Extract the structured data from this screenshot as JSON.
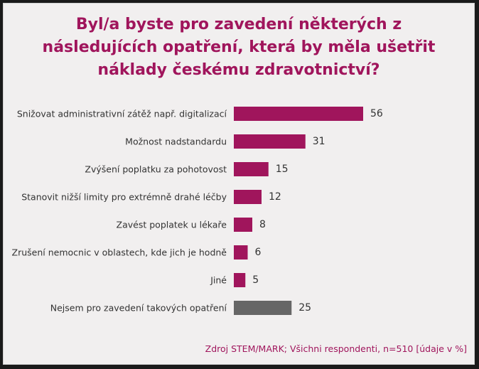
{
  "colors": {
    "primary": "#a0155c",
    "neutral": "#666666",
    "background": "#f1efef",
    "text": "#333333"
  },
  "chart_data": {
    "type": "bar",
    "orientation": "horizontal",
    "title_lines": [
      "Byl/a byste pro zavedení některých z",
      "následujících opatření, která by měla ušetřit",
      "náklady českému zdravotnictví?"
    ],
    "categories": [
      "Snižovat administrativní zátěž např. digitalizací",
      "Možnost nadstandardu",
      "Zvýšení poplatku za pohotovost",
      "Stanovit nižší limity pro  extrémně drahé léčby",
      "Zavést poplatek u lékaře",
      "Zrušení nemocnic v oblastech, kde jich je hodně",
      "Jiné",
      "Nejsem pro zavedení takových opatření"
    ],
    "values": [
      56,
      31,
      15,
      12,
      8,
      6,
      5,
      25
    ],
    "bar_colors": [
      "#a0155c",
      "#a0155c",
      "#a0155c",
      "#a0155c",
      "#a0155c",
      "#a0155c",
      "#a0155c",
      "#666666"
    ],
    "source": "Zdroj STEM/MARK; Všichni respondenti, n=510 [údaje v %]",
    "grid": false,
    "legend": "none"
  }
}
